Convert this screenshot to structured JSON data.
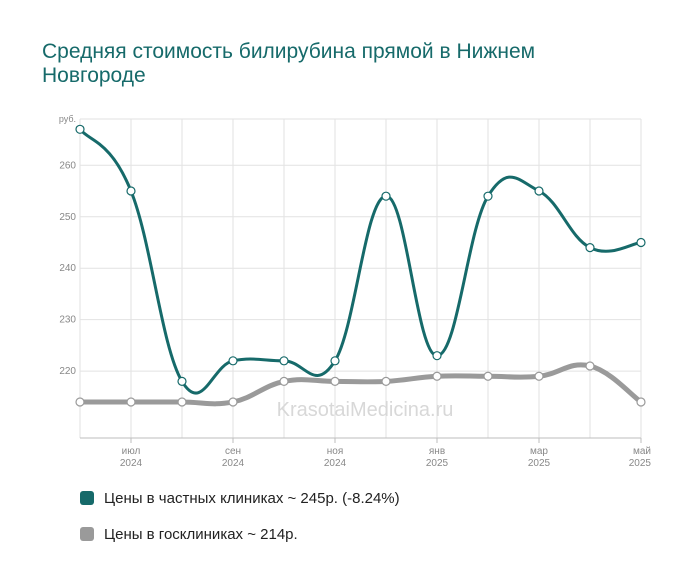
{
  "chart_data": {
    "type": "line",
    "title": "Средняя стоимость билирубина прямой в Нижнем Новгороде",
    "ylabel": "руб.",
    "xlabel": "",
    "watermark": "KrasotaiMedicina.ru",
    "x": [
      "июн 2024",
      "июл 2024",
      "авг 2024",
      "сен 2024",
      "окт 2024",
      "ноя 2024",
      "дек 2024",
      "янв 2025",
      "фев 2025",
      "мар 2025",
      "апр 2025",
      "май 2025"
    ],
    "x_ticks": [
      {
        "index": 1,
        "month": "июл",
        "year": "2024"
      },
      {
        "index": 3,
        "month": "сен",
        "year": "2024"
      },
      {
        "index": 5,
        "month": "ноя",
        "year": "2024"
      },
      {
        "index": 7,
        "month": "янв",
        "year": "2025"
      },
      {
        "index": 9,
        "month": "мар",
        "year": "2025"
      },
      {
        "index": 11,
        "month": "май",
        "year": "2025"
      }
    ],
    "y_ticks": [
      220,
      230,
      240,
      250,
      260
    ],
    "ylim": [
      207,
      269
    ],
    "grid": true,
    "legend_position": "bottom",
    "series": [
      {
        "name": "Цены в частных клиниках ~ 245р. (-8.24%)",
        "color": "#166a6a",
        "values": [
          267,
          255,
          218,
          222,
          222,
          222,
          254,
          223,
          254,
          255,
          244,
          245
        ]
      },
      {
        "name": "Цены в госклиниках ~ 214р.",
        "color": "#9a9a9a",
        "values": [
          214,
          214,
          214,
          214,
          218,
          218,
          218,
          219,
          219,
          219,
          221,
          214
        ]
      }
    ]
  }
}
